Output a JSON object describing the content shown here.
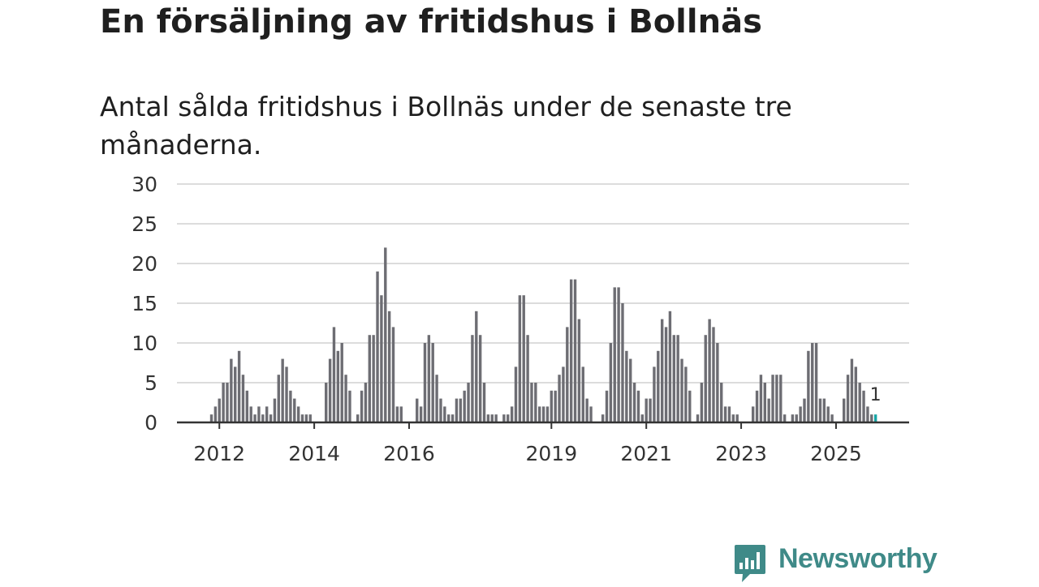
{
  "chart_data": {
    "type": "bar",
    "title": "En försäljning av fritidshus i Bollnäs",
    "subtitle": "Antal sålda fritidshus i Bollnäs under de senaste tre månaderna.",
    "ylim": [
      0,
      30
    ],
    "yticks": [
      0,
      5,
      10,
      15,
      20,
      25,
      30
    ],
    "xticks": [
      {
        "label": "2012",
        "index": 2
      },
      {
        "label": "2014",
        "index": 26
      },
      {
        "label": "2016",
        "index": 50
      },
      {
        "label": "2019",
        "index": 86
      },
      {
        "label": "2021",
        "index": 110
      },
      {
        "label": "2023",
        "index": 134
      },
      {
        "label": "2025",
        "index": 158
      }
    ],
    "grid": true,
    "values": [
      1,
      2,
      3,
      5,
      5,
      8,
      7,
      9,
      6,
      4,
      2,
      1,
      2,
      1,
      2,
      1,
      3,
      6,
      8,
      7,
      4,
      3,
      2,
      1,
      1,
      1,
      0,
      0,
      0,
      5,
      8,
      12,
      9,
      10,
      6,
      4,
      0,
      1,
      4,
      5,
      11,
      11,
      19,
      16,
      22,
      14,
      12,
      2,
      2,
      0,
      0,
      0,
      3,
      2,
      10,
      11,
      10,
      6,
      3,
      2,
      1,
      1,
      3,
      3,
      4,
      5,
      11,
      14,
      11,
      5,
      1,
      1,
      1,
      0,
      1,
      1,
      2,
      7,
      16,
      16,
      11,
      5,
      5,
      2,
      2,
      2,
      4,
      4,
      6,
      7,
      12,
      18,
      18,
      13,
      7,
      3,
      2,
      0,
      0,
      1,
      4,
      10,
      17,
      17,
      15,
      9,
      8,
      5,
      4,
      1,
      3,
      3,
      7,
      9,
      13,
      12,
      14,
      11,
      11,
      8,
      7,
      4,
      0,
      1,
      5,
      11,
      13,
      12,
      10,
      5,
      2,
      2,
      1,
      1,
      0,
      0,
      0,
      2,
      4,
      6,
      5,
      3,
      6,
      6,
      6,
      1,
      0,
      1,
      1,
      2,
      3,
      9,
      10,
      10,
      3,
      3,
      2,
      1,
      0,
      0,
      3,
      6,
      8,
      7,
      5,
      4,
      2,
      1,
      1
    ],
    "highlight": {
      "index": 168,
      "label": "1",
      "color": "#17a5a5"
    },
    "bar_color": "#6d6d73"
  },
  "brand": {
    "name": "Newsworthy",
    "color": "#3f8a88"
  }
}
